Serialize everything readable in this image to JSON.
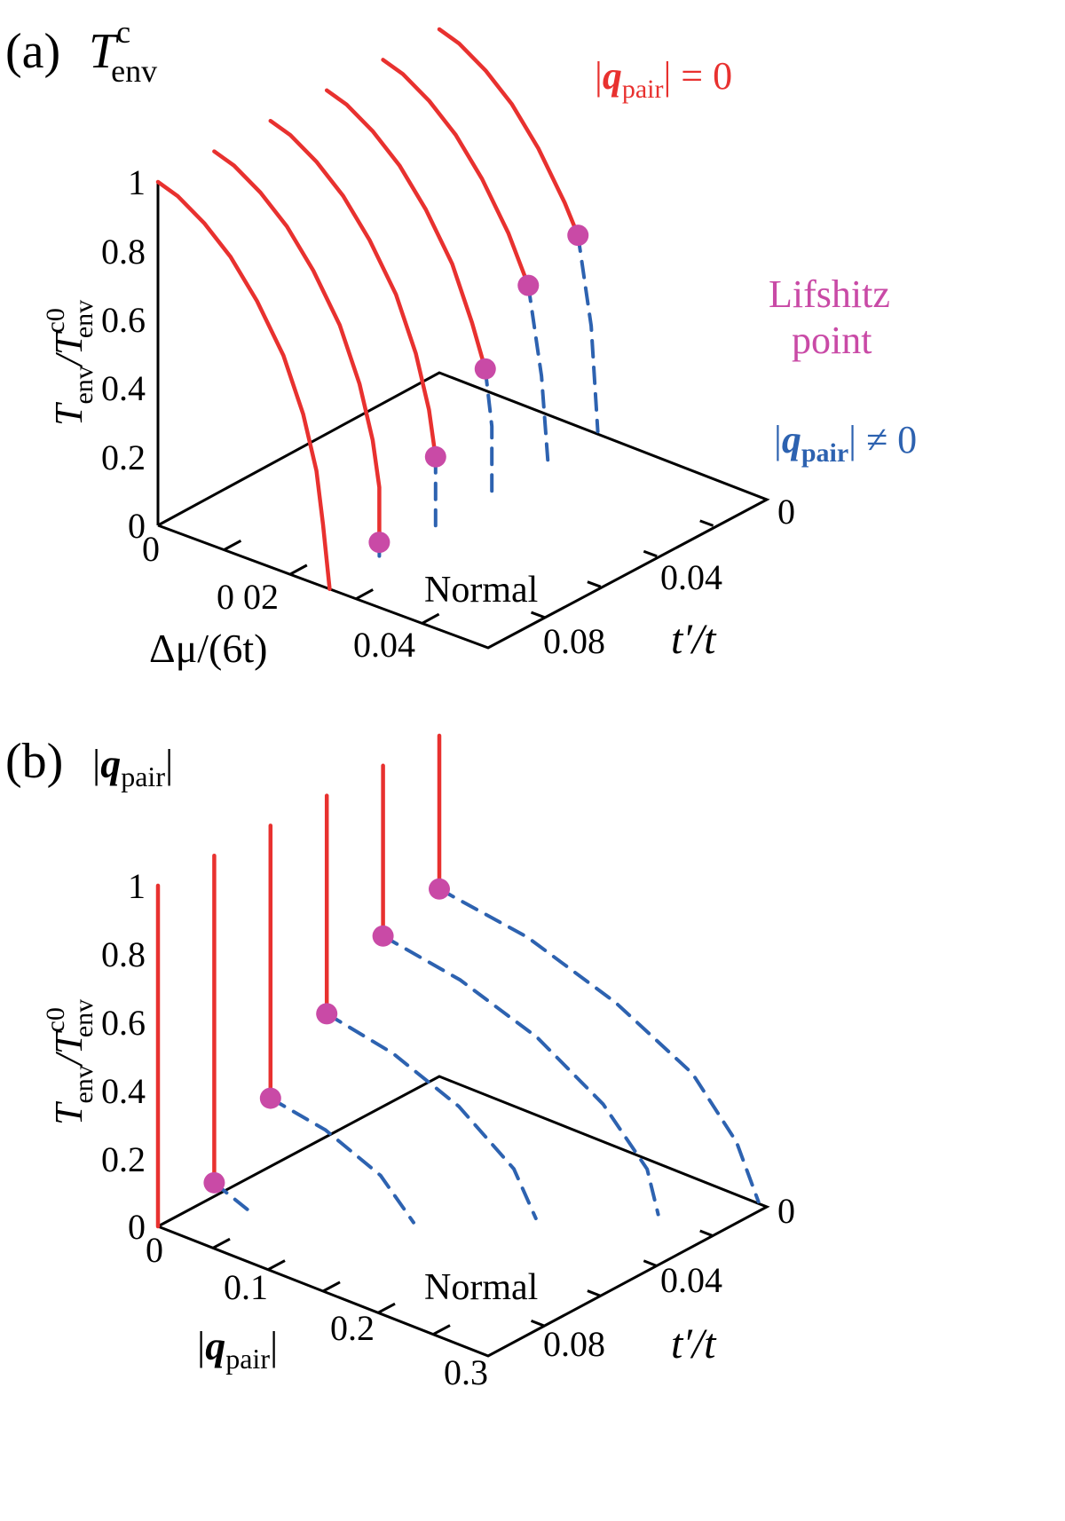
{
  "colors": {
    "ordered_phase": "#e8312f",
    "modulated_phase": "#2d62b0",
    "lifshitz_point": "#c94aa6",
    "axes": "#000000"
  },
  "panel_a": {
    "label": "(a)",
    "title": "T",
    "title_sup": "c",
    "title_sub": "env",
    "z_tick_labels": [
      "0",
      "0.2",
      "0.4",
      "0.6",
      "0.8",
      "1"
    ],
    "x_tick_labels": [
      "0",
      "0 02",
      "0.04"
    ],
    "y_tick_labels": [
      "0",
      "0.04",
      "0.08"
    ],
    "x_axis_label": "Δμ/(6t)",
    "y_axis_label": "t′/t",
    "z_axis_label_main": "T",
    "z_axis_label_sub": "env",
    "z_axis_label_denom": "/T",
    "z_axis_label_denom_sup": "c0",
    "z_axis_label_denom_sub": "env",
    "region_label": "Normal",
    "legend_red": "|q_pair| = 0",
    "legend_red_parts": {
      "open": "|",
      "q": "q",
      "sub": "pair",
      "close": "| = 0"
    },
    "legend_blue_parts": {
      "open": "|",
      "q": "q",
      "sub": "pair",
      "close": "| ≠ 0"
    },
    "lifshitz_line1": "Lifshitz",
    "lifshitz_line2": "point"
  },
  "panel_b": {
    "label": "(b)",
    "title_parts": {
      "open": "|",
      "q": "q",
      "sub": "pair",
      "close": "|"
    },
    "z_tick_labels": [
      "0",
      "0.2",
      "0.4",
      "0.6",
      "0.8",
      "1"
    ],
    "x_tick_labels": [
      "0",
      "0.1",
      "0.2",
      "0.3"
    ],
    "y_tick_labels": [
      "0",
      "0.04",
      "0.08"
    ],
    "x_axis_label_parts": {
      "open": "|",
      "q": "q",
      "sub": "pair",
      "close": "|"
    },
    "y_axis_label": "t′/t",
    "z_axis_label_main": "T",
    "z_axis_label_sub": "env",
    "z_axis_label_denom": "/T",
    "z_axis_label_denom_sup": "c0",
    "z_axis_label_denom_sub": "env",
    "region_label": "Normal"
  },
  "chart_data": [
    {
      "type": "line",
      "panel": "a",
      "projection": "3d",
      "x_axis": "Δμ/(6t)",
      "y_axis": "t′/t",
      "z_axis": "T_env/T_env^c0",
      "xlim": [
        0,
        0.05
      ],
      "ylim": [
        0,
        0.1
      ],
      "zlim": [
        0,
        1
      ],
      "series": [
        {
          "t_prime": 0.0,
          "ordered_points": [
            [
              0.0,
              1.0
            ],
            [
              0.003,
              0.98
            ],
            [
              0.007,
              0.93
            ],
            [
              0.011,
              0.86
            ],
            [
              0.015,
              0.76
            ],
            [
              0.019,
              0.63
            ],
            [
              0.022,
              0.48
            ],
            [
              0.024,
              0.33
            ],
            [
              0.025,
              0.18
            ],
            [
              0.026,
              0.0
            ]
          ],
          "lifshitz_point": null,
          "modulated_points": []
        },
        {
          "t_prime": 0.02,
          "ordered_points": [
            [
              0.0,
              1.0
            ],
            [
              0.003,
              0.98
            ],
            [
              0.007,
              0.93
            ],
            [
              0.011,
              0.86
            ],
            [
              0.015,
              0.76
            ],
            [
              0.019,
              0.63
            ],
            [
              0.022,
              0.48
            ],
            [
              0.024,
              0.33
            ],
            [
              0.025,
              0.2
            ],
            [
              0.025,
              0.04
            ]
          ],
          "lifshitz_point": [
            0.025,
            0.04
          ],
          "modulated_points": [
            [
              0.025,
              0.04
            ],
            [
              0.025,
              0.0
            ]
          ]
        },
        {
          "t_prime": 0.04,
          "ordered_points": [
            [
              0.0,
              1.0
            ],
            [
              0.003,
              0.98
            ],
            [
              0.007,
              0.93
            ],
            [
              0.011,
              0.86
            ],
            [
              0.015,
              0.76
            ],
            [
              0.019,
              0.63
            ],
            [
              0.022,
              0.48
            ],
            [
              0.024,
              0.33
            ],
            [
              0.025,
              0.2
            ]
          ],
          "lifshitz_point": [
            0.025,
            0.2
          ],
          "modulated_points": [
            [
              0.025,
              0.2
            ],
            [
              0.025,
              0.1
            ],
            [
              0.025,
              0.0
            ]
          ]
        },
        {
          "t_prime": 0.06,
          "ordered_points": [
            [
              0.0,
              1.0
            ],
            [
              0.003,
              0.98
            ],
            [
              0.007,
              0.93
            ],
            [
              0.011,
              0.86
            ],
            [
              0.015,
              0.76
            ],
            [
              0.019,
              0.63
            ],
            [
              0.022,
              0.48
            ],
            [
              0.024,
              0.36
            ]
          ],
          "lifshitz_point": [
            0.024,
            0.36
          ],
          "modulated_points": [
            [
              0.024,
              0.36
            ],
            [
              0.025,
              0.2
            ],
            [
              0.025,
              0.0
            ]
          ]
        },
        {
          "t_prime": 0.08,
          "ordered_points": [
            [
              0.0,
              1.0
            ],
            [
              0.003,
              0.98
            ],
            [
              0.007,
              0.93
            ],
            [
              0.011,
              0.86
            ],
            [
              0.015,
              0.76
            ],
            [
              0.019,
              0.63
            ],
            [
              0.022,
              0.5
            ]
          ],
          "lifshitz_point": [
            0.022,
            0.5
          ],
          "modulated_points": [
            [
              0.022,
              0.5
            ],
            [
              0.024,
              0.25
            ],
            [
              0.025,
              0.0
            ]
          ]
        },
        {
          "t_prime": 0.1,
          "ordered_points": [
            [
              0.0,
              1.0
            ],
            [
              0.003,
              0.98
            ],
            [
              0.007,
              0.93
            ],
            [
              0.011,
              0.86
            ],
            [
              0.015,
              0.76
            ],
            [
              0.019,
              0.63
            ],
            [
              0.021,
              0.55
            ]
          ],
          "lifshitz_point": [
            0.021,
            0.55
          ],
          "modulated_points": [
            [
              0.021,
              0.55
            ],
            [
              0.023,
              0.3
            ],
            [
              0.024,
              0.0
            ]
          ]
        }
      ]
    },
    {
      "type": "line",
      "panel": "b",
      "projection": "3d",
      "x_axis": "|q_pair|",
      "y_axis": "t′/t",
      "z_axis": "T_env/T_env^c0",
      "xlim": [
        0,
        0.3
      ],
      "ylim": [
        0,
        0.1
      ],
      "zlim": [
        0,
        1
      ],
      "series": [
        {
          "t_prime": 0.0,
          "ordered_top": 1.0,
          "lifshitz_z": 0.0,
          "modulated_points": []
        },
        {
          "t_prime": 0.02,
          "ordered_top": 1.0,
          "lifshitz_z": 0.04,
          "modulated_points": [
            [
              0.0,
              0.04
            ],
            [
              0.03,
              0.0
            ]
          ]
        },
        {
          "t_prime": 0.04,
          "ordered_top": 1.0,
          "lifshitz_z": 0.2,
          "modulated_points": [
            [
              0.0,
              0.2
            ],
            [
              0.05,
              0.17
            ],
            [
              0.1,
              0.1
            ],
            [
              0.13,
              0.0
            ]
          ]
        },
        {
          "t_prime": 0.06,
          "ordered_top": 1.0,
          "lifshitz_z": 0.36,
          "modulated_points": [
            [
              0.0,
              0.36
            ],
            [
              0.06,
              0.32
            ],
            [
              0.12,
              0.24
            ],
            [
              0.17,
              0.12
            ],
            [
              0.19,
              0.0
            ]
          ]
        },
        {
          "t_prime": 0.08,
          "ordered_top": 1.0,
          "lifshitz_z": 0.5,
          "modulated_points": [
            [
              0.0,
              0.5
            ],
            [
              0.07,
              0.46
            ],
            [
              0.14,
              0.38
            ],
            [
              0.2,
              0.26
            ],
            [
              0.24,
              0.12
            ],
            [
              0.25,
              0.0
            ]
          ]
        },
        {
          "t_prime": 0.1,
          "ordered_top": 1.0,
          "lifshitz_z": 0.55,
          "modulated_points": [
            [
              0.0,
              0.55
            ],
            [
              0.08,
              0.51
            ],
            [
              0.16,
              0.42
            ],
            [
              0.23,
              0.3
            ],
            [
              0.27,
              0.15
            ],
            [
              0.29,
              0.0
            ]
          ]
        }
      ]
    }
  ]
}
